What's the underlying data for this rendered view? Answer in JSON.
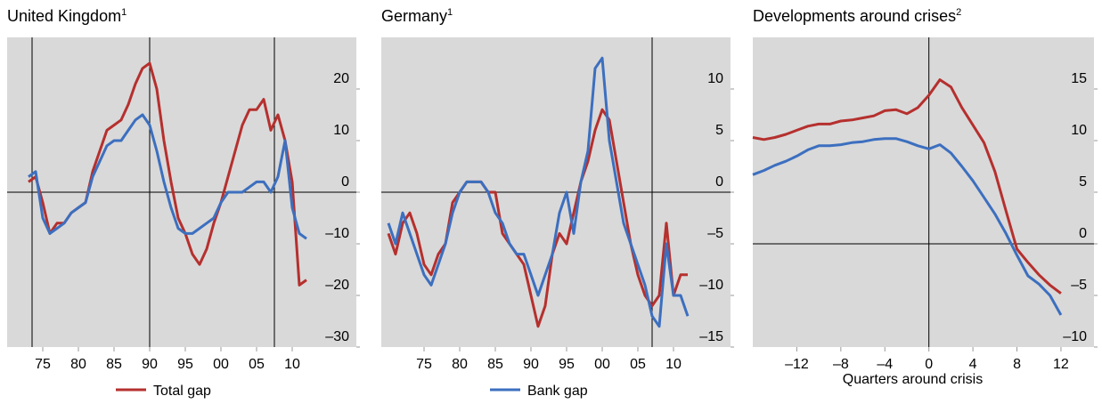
{
  "chart_data": [
    {
      "type": "line",
      "title": "United Kingdom",
      "title_sup": "1",
      "x": [
        1973,
        1974,
        1975,
        1976,
        1977,
        1978,
        1979,
        1980,
        1981,
        1982,
        1983,
        1984,
        1985,
        1986,
        1987,
        1988,
        1989,
        1990,
        1991,
        1992,
        1993,
        1994,
        1995,
        1996,
        1997,
        1998,
        1999,
        2000,
        2001,
        2002,
        2003,
        2004,
        2005,
        2006,
        2007,
        2008,
        2009,
        2010,
        2011,
        2012
      ],
      "series": [
        {
          "name": "Total gap",
          "color": "#b5302e",
          "values": [
            2,
            3,
            -2,
            -8,
            -6,
            -6,
            -4,
            -3,
            -2,
            4,
            8,
            12,
            13,
            14,
            17,
            21,
            24,
            25,
            20,
            10,
            2,
            -5,
            -8,
            -12,
            -14,
            -11,
            -6,
            -2,
            3,
            8,
            13,
            16,
            16,
            18,
            12,
            15,
            10,
            2,
            -18,
            -17
          ]
        },
        {
          "color": "#3c6fbf",
          "values": [
            3,
            4,
            -5,
            -8,
            -7,
            -6,
            -4,
            -3,
            -2,
            3,
            6,
            9,
            10,
            10,
            12,
            14,
            15,
            13,
            8,
            2,
            -3,
            -7,
            -8,
            -8,
            -7,
            -6,
            -5,
            -2,
            0,
            0,
            0,
            1,
            2,
            2,
            0,
            3,
            10,
            -3,
            -8,
            -9
          ]
        }
      ],
      "xlim": [
        1970,
        2019
      ],
      "xticks": [
        {
          "value": 1975,
          "label": "75"
        },
        {
          "value": 1980,
          "label": "80"
        },
        {
          "value": 1985,
          "label": "85"
        },
        {
          "value": 1990,
          "label": "90"
        },
        {
          "value": 1995,
          "label": "95"
        },
        {
          "value": 2000,
          "label": "00"
        },
        {
          "value": 2005,
          "label": "05"
        },
        {
          "value": 2010,
          "label": "10"
        }
      ],
      "ylim": [
        -30,
        30
      ],
      "yticks": [
        {
          "value": -30,
          "label": "–30"
        },
        {
          "value": -20,
          "label": "–20"
        },
        {
          "value": -10,
          "label": "–10"
        },
        0,
        10,
        20
      ],
      "vlines": [
        1973.5,
        1990,
        2007.5
      ],
      "hlines": [
        0
      ]
    },
    {
      "type": "line",
      "title": "Germany",
      "title_sup": "1",
      "x": [
        1970,
        1971,
        1972,
        1973,
        1974,
        1975,
        1976,
        1977,
        1978,
        1979,
        1980,
        1981,
        1982,
        1983,
        1984,
        1985,
        1986,
        1987,
        1988,
        1989,
        1990,
        1991,
        1992,
        1993,
        1994,
        1995,
        1996,
        1997,
        1998,
        1999,
        2000,
        2001,
        2002,
        2003,
        2004,
        2005,
        2006,
        2007,
        2008,
        2009,
        2010,
        2011,
        2012
      ],
      "series": [
        {
          "color": "#b5302e",
          "values": [
            -4,
            -6,
            -3,
            -2,
            -4,
            -7,
            -8,
            -6,
            -5,
            -1,
            0,
            1,
            1,
            1,
            0,
            0,
            -4,
            -5,
            -6,
            -7,
            -10,
            -13,
            -11,
            -6,
            -4,
            -5,
            -2,
            1,
            3,
            6,
            8,
            7,
            3,
            -1,
            -5,
            -8,
            -10,
            -11,
            -10,
            -3,
            -10,
            -8,
            -8
          ]
        },
        {
          "name": "Bank gap",
          "color": "#3c6fbf",
          "values": [
            -3,
            -5,
            -2,
            -4,
            -6,
            -8,
            -9,
            -7,
            -5,
            -2,
            0,
            1,
            1,
            1,
            0,
            -2,
            -3,
            -5,
            -6,
            -6,
            -8,
            -10,
            -8,
            -6,
            -2,
            0,
            -4,
            1,
            4,
            12,
            13,
            5,
            1,
            -3,
            -5,
            -7,
            -9,
            -12,
            -13,
            -5,
            -10,
            -10,
            -12
          ]
        }
      ],
      "xlim": [
        1969,
        2018
      ],
      "xticks": [
        {
          "value": 1975,
          "label": "75"
        },
        {
          "value": 1980,
          "label": "80"
        },
        {
          "value": 1985,
          "label": "85"
        },
        {
          "value": 1990,
          "label": "90"
        },
        {
          "value": 1995,
          "label": "95"
        },
        {
          "value": 2000,
          "label": "00"
        },
        {
          "value": 2005,
          "label": "05"
        },
        {
          "value": 2010,
          "label": "10"
        }
      ],
      "ylim": [
        -15,
        15
      ],
      "yticks": [
        {
          "value": -15,
          "label": "–15"
        },
        {
          "value": -10,
          "label": "–10"
        },
        {
          "value": -5,
          "label": "–5"
        },
        0,
        5,
        10
      ],
      "vlines": [
        2007
      ],
      "hlines": [
        0
      ]
    },
    {
      "type": "line",
      "title": "Developments around crises",
      "title_sup": "2",
      "x_label": "Quarters around crisis",
      "x": [
        -16,
        -15,
        -14,
        -13,
        -12,
        -11,
        -10,
        -9,
        -8,
        -7,
        -6,
        -5,
        -4,
        -3,
        -2,
        -1,
        0,
        1,
        2,
        3,
        4,
        5,
        6,
        7,
        8,
        9,
        10,
        11,
        12
      ],
      "series": [
        {
          "color": "#b5302e",
          "values": [
            10.3,
            10.1,
            10.3,
            10.6,
            11.0,
            11.4,
            11.6,
            11.6,
            11.9,
            12.0,
            12.2,
            12.4,
            12.9,
            13.0,
            12.6,
            13.2,
            14.4,
            15.9,
            15.2,
            13.2,
            11.5,
            9.8,
            7.0,
            3.2,
            -0.5,
            -1.8,
            -3.0,
            -4.0,
            -4.8
          ]
        },
        {
          "color": "#3c6fbf",
          "values": [
            6.7,
            7.1,
            7.6,
            8.0,
            8.5,
            9.1,
            9.5,
            9.5,
            9.6,
            9.8,
            9.9,
            10.1,
            10.2,
            10.2,
            9.9,
            9.5,
            9.2,
            9.6,
            8.8,
            7.5,
            6.1,
            4.5,
            2.9,
            1.0,
            -1.1,
            -3.1,
            -3.9,
            -5.0,
            -6.9
          ]
        }
      ],
      "xlim": [
        -16,
        15
      ],
      "xticks": [
        {
          "value": -12,
          "label": "–12"
        },
        {
          "value": -8,
          "label": "–8"
        },
        {
          "value": -4,
          "label": "–4"
        },
        0,
        4,
        8,
        12
      ],
      "ylim": [
        -10,
        20
      ],
      "yticks": [
        {
          "value": -10,
          "label": "–10"
        },
        {
          "value": -5,
          "label": "–5"
        },
        0,
        5,
        10,
        15
      ],
      "vlines": [
        0
      ],
      "hlines": [
        0
      ]
    }
  ]
}
